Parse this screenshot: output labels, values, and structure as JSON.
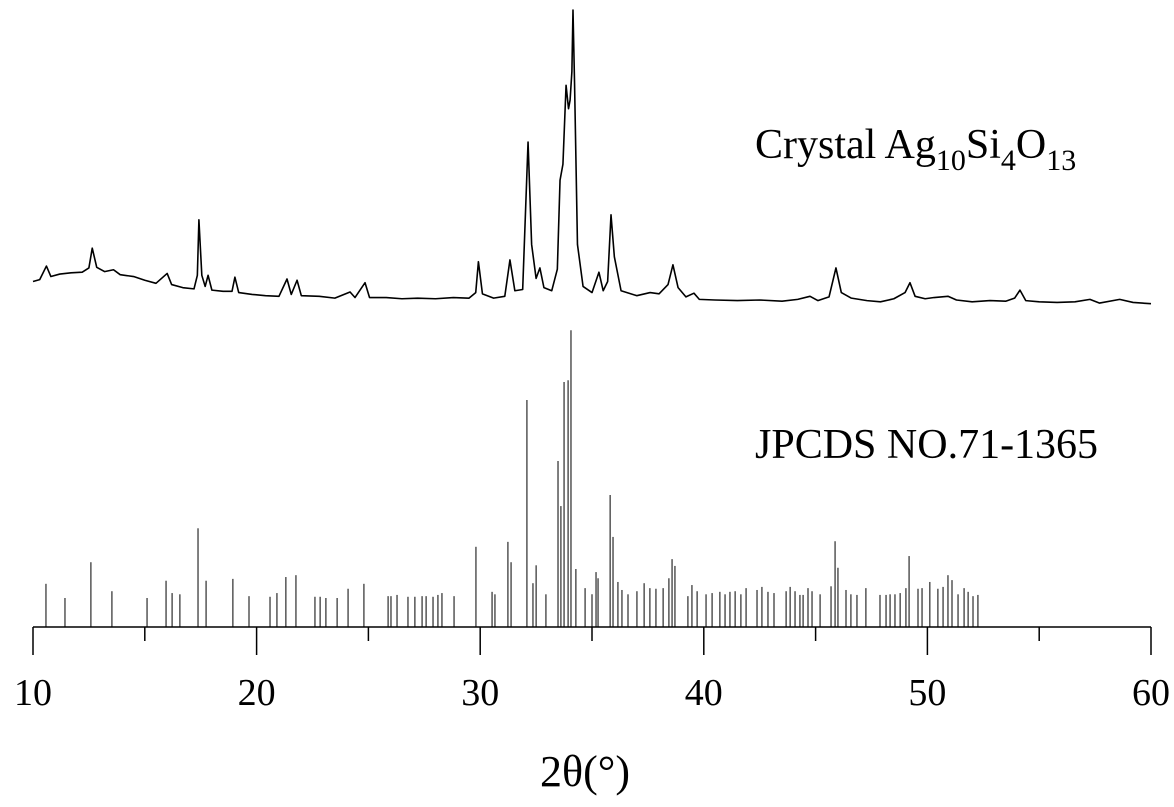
{
  "chart_data": {
    "type": "xrd",
    "x_label": "2θ(°)",
    "xlim": [
      10,
      60
    ],
    "xticks": [
      10,
      20,
      30,
      40,
      50,
      60
    ],
    "xminorticks": [
      15,
      25,
      35,
      45,
      55
    ],
    "ylim": [
      0,
      100
    ],
    "annotations": [
      {
        "parts": [
          "Crystal Ag",
          "10",
          "Si",
          "4",
          "O",
          "13"
        ]
      },
      {
        "parts": [
          "JPCDS NO.71-1365"
        ]
      }
    ],
    "series": [
      {
        "type": "line",
        "color": "#000000",
        "x": [
          10.0,
          10.3,
          10.6,
          10.8,
          11.2,
          11.7,
          12.2,
          12.5,
          12.65,
          12.85,
          13.2,
          13.6,
          13.9,
          14.5,
          15.0,
          15.5,
          16.0,
          16.2,
          16.7,
          17.2,
          17.35,
          17.42,
          17.55,
          17.7,
          17.83,
          18.0,
          18.5,
          18.9,
          19.03,
          19.2,
          19.8,
          20.4,
          21.0,
          21.36,
          21.55,
          21.81,
          22.0,
          22.8,
          23.5,
          24.18,
          24.4,
          24.85,
          25.05,
          25.8,
          26.5,
          27.2,
          28.0,
          28.8,
          29.5,
          29.8,
          29.92,
          30.1,
          30.6,
          31.1,
          31.33,
          31.55,
          31.9,
          32.14,
          32.3,
          32.5,
          32.67,
          32.85,
          33.2,
          33.45,
          33.57,
          33.7,
          33.84,
          33.95,
          34.02,
          34.1,
          34.15,
          34.22,
          34.35,
          34.6,
          35.0,
          35.31,
          35.5,
          35.7,
          35.85,
          36.0,
          36.3,
          37.0,
          37.6,
          38.0,
          38.4,
          38.62,
          38.85,
          39.2,
          39.56,
          39.8,
          40.5,
          41.5,
          42.5,
          43.5,
          44.2,
          44.75,
          45.1,
          45.6,
          45.91,
          46.15,
          46.6,
          47.3,
          47.9,
          48.5,
          49.0,
          49.22,
          49.45,
          49.9,
          50.3,
          50.92,
          51.3,
          52.0,
          52.8,
          53.5,
          53.9,
          54.14,
          54.4,
          55.0,
          55.8,
          56.6,
          57.27,
          57.7,
          58.6,
          59.2,
          60.0
        ],
        "values": [
          56.0,
          56.3,
          58.5,
          56.8,
          57.2,
          57.4,
          57.5,
          58.2,
          61.4,
          58.3,
          57.6,
          57.9,
          57.1,
          56.8,
          56.2,
          55.7,
          57.3,
          55.5,
          55.0,
          54.8,
          57.0,
          66.0,
          57.0,
          55.2,
          57.0,
          54.6,
          54.4,
          54.4,
          56.7,
          54.2,
          53.9,
          53.7,
          53.6,
          56.4,
          53.9,
          56.2,
          53.7,
          53.6,
          53.3,
          54.3,
          53.4,
          55.8,
          53.4,
          53.4,
          53.2,
          53.3,
          53.2,
          53.4,
          53.3,
          54.2,
          59.2,
          54.0,
          53.3,
          53.6,
          59.5,
          54.5,
          54.7,
          78.6,
          62.0,
          56.5,
          58.2,
          55.0,
          54.5,
          58.0,
          72.4,
          75.0,
          87.8,
          84.0,
          85.4,
          90.0,
          100,
          88.0,
          62.0,
          55.2,
          54.2,
          57.5,
          54.5,
          56.0,
          66.8,
          60.0,
          54.5,
          53.7,
          54.2,
          54.0,
          55.5,
          58.7,
          55.0,
          53.5,
          54.1,
          53.1,
          53.0,
          52.9,
          53.0,
          52.8,
          53.1,
          53.6,
          52.9,
          53.5,
          58.2,
          54.2,
          53.3,
          52.9,
          52.7,
          53.2,
          54.2,
          55.8,
          53.6,
          53.2,
          53.4,
          53.6,
          53.0,
          52.7,
          52.9,
          52.8,
          53.3,
          54.6,
          52.9,
          52.7,
          52.6,
          52.7,
          53.1,
          52.5,
          53.1,
          52.6,
          52.4
        ]
      },
      {
        "type": "stick",
        "color": "#000000",
        "x": [
          10.58,
          11.43,
          12.59,
          13.53,
          15.1,
          15.95,
          16.22,
          16.57,
          17.38,
          17.74,
          18.94,
          19.66,
          20.6,
          20.91,
          21.31,
          21.76,
          22.61,
          22.84,
          23.1,
          23.6,
          24.09,
          24.8,
          25.88,
          26.01,
          26.28,
          26.77,
          27.08,
          27.4,
          27.58,
          27.89,
          28.11,
          28.29,
          28.83,
          29.81,
          30.53,
          30.66,
          31.24,
          31.38,
          32.09,
          32.36,
          32.5,
          32.94,
          33.48,
          33.61,
          33.75,
          33.93,
          34.06,
          34.28,
          34.69,
          35.0,
          35.18,
          35.27,
          35.81,
          35.94,
          36.16,
          36.34,
          36.61,
          37.01,
          37.33,
          37.59,
          37.86,
          38.18,
          38.44,
          38.58,
          38.71,
          39.29,
          39.47,
          39.7,
          40.1,
          40.37,
          40.72,
          40.95,
          41.17,
          41.4,
          41.66,
          41.89,
          42.38,
          42.6,
          42.87,
          43.14,
          43.68,
          43.86,
          44.08,
          44.3,
          44.44,
          44.66,
          44.84,
          45.2,
          45.69,
          45.87,
          46.0,
          46.36,
          46.58,
          46.85,
          47.25,
          47.88,
          48.15,
          48.33,
          48.55,
          48.78,
          49.04,
          49.18,
          49.58,
          49.76,
          50.11,
          50.47,
          50.7,
          50.92,
          51.1,
          51.37,
          51.64,
          51.82,
          52.04,
          52.26
        ],
        "values": [
          7.0,
          4.7,
          10.5,
          5.8,
          4.7,
          7.5,
          5.5,
          5.3,
          16.0,
          7.5,
          7.8,
          5.0,
          4.9,
          5.5,
          8.1,
          8.4,
          4.9,
          4.9,
          4.7,
          4.7,
          6.2,
          7.0,
          5.0,
          5.0,
          5.2,
          4.9,
          4.9,
          5.0,
          5.0,
          4.9,
          5.2,
          5.5,
          5.0,
          13.0,
          5.7,
          5.3,
          13.8,
          10.5,
          36.8,
          7.1,
          10.0,
          5.3,
          26.9,
          19.6,
          39.7,
          40.0,
          48.1,
          9.4,
          6.3,
          5.3,
          8.9,
          7.9,
          21.4,
          14.6,
          7.3,
          6.0,
          5.3,
          5.8,
          7.1,
          6.3,
          6.2,
          6.3,
          7.9,
          11.0,
          9.9,
          5.0,
          6.8,
          5.8,
          5.3,
          5.5,
          5.7,
          5.3,
          5.7,
          5.8,
          5.3,
          6.3,
          6.0,
          6.5,
          5.7,
          5.5,
          5.8,
          6.5,
          5.8,
          5.2,
          5.2,
          6.3,
          5.8,
          5.3,
          6.6,
          13.9,
          9.6,
          6.0,
          5.3,
          5.2,
          6.3,
          5.2,
          5.2,
          5.3,
          5.3,
          5.5,
          6.3,
          11.5,
          6.2,
          6.3,
          7.3,
          6.2,
          6.5,
          8.4,
          7.6,
          5.3,
          6.3,
          5.7,
          5.0,
          5.2
        ]
      }
    ]
  }
}
